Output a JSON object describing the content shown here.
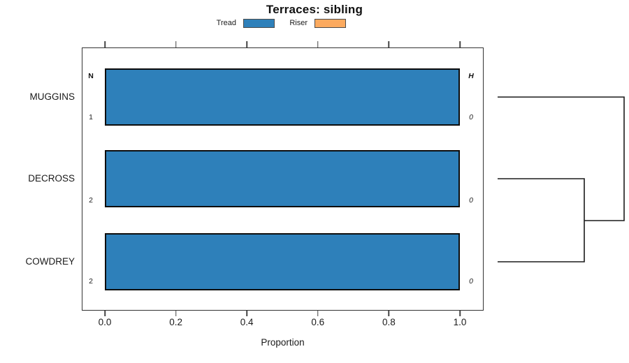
{
  "chart_data": {
    "type": "bar",
    "orientation": "horizontal",
    "title": "Terraces: sibling",
    "xlabel": "Proportion",
    "xlim": [
      0,
      1.08
    ],
    "grid": false,
    "legend_position": "top-center",
    "xtick_labels": [
      "0.0",
      "0.2",
      "0.4",
      "0.6",
      "0.8",
      "1.0"
    ],
    "xtick_values": [
      0,
      0.2,
      0.4,
      0.6,
      0.8,
      1.0
    ],
    "categories": [
      "MUGGINS",
      "DECROSS",
      "COWDREY"
    ],
    "series": [
      {
        "name": "Tread",
        "color": "#2e80ba",
        "values": [
          1.0,
          1.0,
          1.0
        ]
      },
      {
        "name": "Riser",
        "color": "#fcaa5f",
        "values": [
          0.0,
          0.0,
          0.0
        ]
      }
    ],
    "columns": {
      "left_header": "N",
      "right_header": "H",
      "left_values": [
        "1",
        "2",
        "2"
      ],
      "right_values": [
        "0",
        "0",
        "0"
      ]
    },
    "dendrogram": {
      "leaves": [
        "MUGGINS",
        "DECROSS",
        "COWDREY"
      ],
      "merges": [
        {
          "members": [
            "DECROSS",
            "COWDREY"
          ]
        },
        {
          "members": [
            "MUGGINS",
            "(DECROSS,COWDREY)"
          ]
        }
      ]
    }
  }
}
